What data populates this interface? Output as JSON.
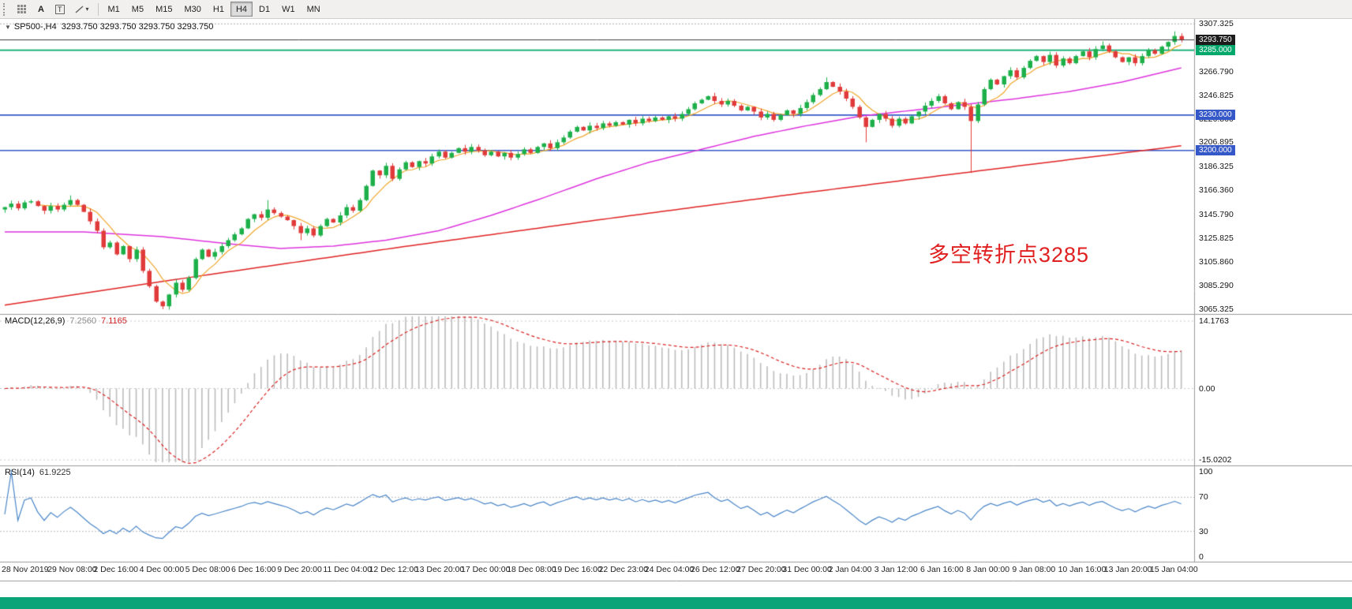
{
  "toolbar": {
    "text_tool_label": "A",
    "type_tool_label": "T",
    "caret": "▾",
    "timeframes": [
      {
        "label": "M1",
        "active": false
      },
      {
        "label": "M5",
        "active": false
      },
      {
        "label": "M15",
        "active": false
      },
      {
        "label": "M30",
        "active": false
      },
      {
        "label": "H1",
        "active": false
      },
      {
        "label": "H4",
        "active": true
      },
      {
        "label": "D1",
        "active": false
      },
      {
        "label": "W1",
        "active": false
      },
      {
        "label": "MN",
        "active": false
      }
    ]
  },
  "chart": {
    "symbol_period": "SP500-,H4",
    "ohlc": "3293.750 3293.750 3293.750 3293.750",
    "current_price": 3293.75,
    "top_dotted_level": 3307.325,
    "scale": {
      "price_min": 3061.5,
      "price_max": 3311.5
    },
    "price_axis_ticks": [
      {
        "label": "3307.325",
        "value": 3307.325
      },
      {
        "label": "3286.860",
        "value": 3286.86
      },
      {
        "label": "3266.790",
        "value": 3266.79
      },
      {
        "label": "3246.825",
        "value": 3246.825
      },
      {
        "label": "3226.860",
        "value": 3226.86
      },
      {
        "label": "3206.895",
        "value": 3206.895
      },
      {
        "label": "3186.325",
        "value": 3186.325
      },
      {
        "label": "3166.360",
        "value": 3166.36
      },
      {
        "label": "3145.790",
        "value": 3145.79
      },
      {
        "label": "3125.825",
        "value": 3125.825
      },
      {
        "label": "3105.860",
        "value": 3105.86
      },
      {
        "label": "3085.290",
        "value": 3085.29
      },
      {
        "label": "3065.325",
        "value": 3065.325
      }
    ],
    "badges": [
      {
        "label": "3293.750",
        "value": 3293.75,
        "color": "#1c1c1c",
        "type": "current-price"
      },
      {
        "label": "3285.000",
        "value": 3285.0,
        "color": "#00a86b",
        "type": "hline"
      },
      {
        "label": "3230.000",
        "value": 3230.0,
        "color": "#3558c8",
        "type": "hline"
      },
      {
        "label": "3200.000",
        "value": 3200.0,
        "color": "#3558c8",
        "type": "hline"
      }
    ],
    "hlines": [
      {
        "value": 3285.0,
        "color": "#00a86b"
      },
      {
        "value": 3230.0,
        "color": "#3558c8"
      },
      {
        "value": 3200.0,
        "color": "#3558c8"
      }
    ],
    "annotation": {
      "text": "多空转折点3285",
      "color": "#e02020"
    }
  },
  "chart_data": {
    "type": "candlestick",
    "symbol": "SP500",
    "period": "H4",
    "up_color": "#1db04a",
    "down_color": "#e03a3a",
    "closes": [
      3152,
      3155,
      3151,
      3156,
      3157,
      3153,
      3149,
      3153,
      3150,
      3154,
      3158,
      3154,
      3148,
      3140,
      3132,
      3118,
      3122,
      3112,
      3119,
      3108,
      3116,
      3098,
      3085,
      3072,
      3068,
      3078,
      3088,
      3082,
      3092,
      3108,
      3116,
      3110,
      3114,
      3119,
      3124,
      3129,
      3134,
      3142,
      3146,
      3143,
      3150,
      3147,
      3144,
      3141,
      3136,
      3130,
      3134,
      3128,
      3136,
      3142,
      3139,
      3145,
      3152,
      3149,
      3158,
      3170,
      3183,
      3179,
      3187,
      3176,
      3184,
      3190,
      3186,
      3191,
      3189,
      3195,
      3199,
      3194,
      3198,
      3202,
      3199,
      3203,
      3200,
      3196,
      3199,
      3195,
      3198,
      3194,
      3197,
      3201,
      3198,
      3203,
      3206,
      3202,
      3207,
      3211,
      3216,
      3220,
      3217,
      3221,
      3219,
      3223,
      3221,
      3224,
      3222,
      3226,
      3223,
      3227,
      3225,
      3228,
      3226,
      3229,
      3227,
      3231,
      3235,
      3240,
      3243,
      3246,
      3242,
      3239,
      3242,
      3238,
      3234,
      3237,
      3233,
      3228,
      3231,
      3226,
      3230,
      3234,
      3231,
      3236,
      3241,
      3247,
      3252,
      3258,
      3254,
      3250,
      3244,
      3237,
      3228,
      3220,
      3226,
      3231,
      3227,
      3221,
      3227,
      3223,
      3229,
      3233,
      3238,
      3242,
      3246,
      3240,
      3235,
      3241,
      3237,
      3225,
      3239,
      3252,
      3260,
      3256,
      3263,
      3268,
      3262,
      3270,
      3276,
      3280,
      3275,
      3281,
      3272,
      3278,
      3274,
      3280,
      3284,
      3279,
      3286,
      3289,
      3284,
      3279,
      3275,
      3279,
      3274,
      3280,
      3285,
      3282,
      3288,
      3292,
      3297,
      3293.75
    ],
    "wick_overrides": {
      "10": {
        "high": 3162
      },
      "24": {
        "low": 3065.5
      },
      "40": {
        "high": 3158
      },
      "45": {
        "low": 3124
      },
      "125": {
        "high": 3262
      },
      "131": {
        "low": 3207
      },
      "147": {
        "low": 3181
      },
      "167": {
        "high": 3292.5
      },
      "178": {
        "high": 3301
      }
    },
    "ma_fast": {
      "period": 6,
      "color": "#efa62b"
    },
    "ma_mid": {
      "color": "#dd33dd",
      "anchors": [
        [
          0,
          3131
        ],
        [
          12,
          3131
        ],
        [
          24,
          3127
        ],
        [
          34,
          3121
        ],
        [
          42,
          3117
        ],
        [
          50,
          3119
        ],
        [
          58,
          3124
        ],
        [
          66,
          3132
        ],
        [
          74,
          3145
        ],
        [
          82,
          3160
        ],
        [
          90,
          3176
        ],
        [
          98,
          3190
        ],
        [
          106,
          3201
        ],
        [
          114,
          3212
        ],
        [
          122,
          3221
        ],
        [
          130,
          3229
        ],
        [
          138,
          3234
        ],
        [
          146,
          3239
        ],
        [
          154,
          3244
        ],
        [
          162,
          3250
        ],
        [
          170,
          3258
        ],
        [
          179,
          3270
        ]
      ]
    },
    "ma_slow": {
      "color": "#e02222",
      "anchors": [
        [
          0,
          3069
        ],
        [
          30,
          3094
        ],
        [
          60,
          3118
        ],
        [
          90,
          3141
        ],
        [
          120,
          3163
        ],
        [
          150,
          3184
        ],
        [
          179,
          3204
        ]
      ]
    }
  },
  "macd": {
    "label": "MACD(12,26,9)",
    "value_main": "7.2560",
    "value_signal": "7.1165",
    "params": {
      "fast": 12,
      "slow": 26,
      "signal": 9
    },
    "axis": [
      {
        "label": "14.1763",
        "value": 14.1763
      },
      {
        "label": "0.00",
        "value": 0
      },
      {
        "label": "-15.0202",
        "value": -15.0202
      }
    ],
    "hist_color": "#bcbcbc",
    "signal_color": "#d92222"
  },
  "rsi": {
    "label": "RSI(14)",
    "value": "61.9225",
    "period": 14,
    "color": "#4a86c8",
    "levels": [
      70,
      30
    ],
    "axis": [
      {
        "label": "100",
        "value": 100
      },
      {
        "label": "70",
        "value": 70
      },
      {
        "label": "30",
        "value": 30
      },
      {
        "label": "0",
        "value": 0
      }
    ]
  },
  "time_axis": {
    "labels": [
      "28 Nov 2019",
      "29 Nov 08:00",
      "2 Dec 16:00",
      "4 Dec 00:00",
      "5 Dec 08:00",
      "6 Dec 16:00",
      "9 Dec 20:00",
      "11 Dec 04:00",
      "12 Dec 12:00",
      "13 Dec 20:00",
      "17 Dec 00:00",
      "18 Dec 08:00",
      "19 Dec 16:00",
      "22 Dec 23:00",
      "24 Dec 04:00",
      "26 Dec 12:00",
      "27 Dec 20:00",
      "31 Dec 00:00",
      "2 Jan 04:00",
      "3 Jan 12:00",
      "6 Jan 16:00",
      "8 Jan 00:00",
      "9 Jan 08:00",
      "10 Jan 16:00",
      "13 Jan 20:00",
      "15 Jan 04:00"
    ]
  },
  "status_strip": {
    "color": "#0aa478"
  }
}
